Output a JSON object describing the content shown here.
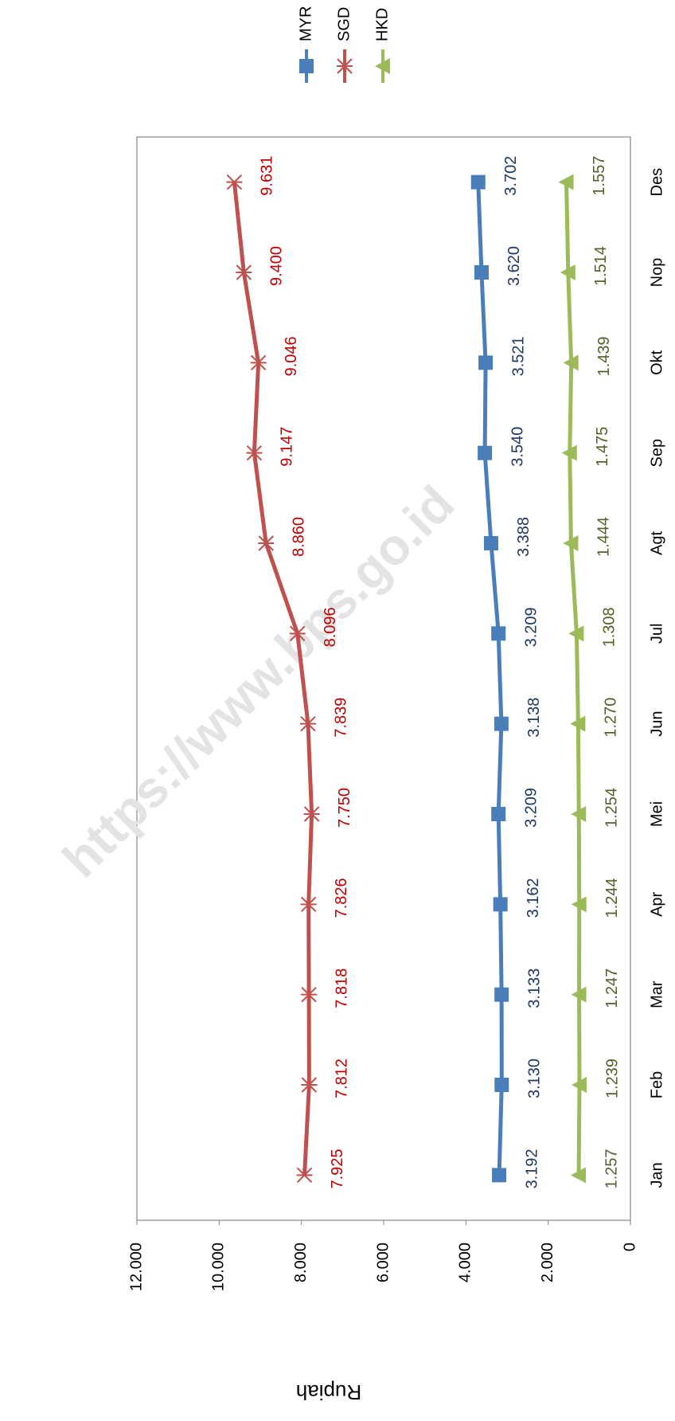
{
  "chart_data": {
    "type": "line",
    "y_label": "Rupiah",
    "watermark": "https://www.bps.go.id",
    "categories": [
      "Jan",
      "Feb",
      "Mar",
      "Apr",
      "Mei",
      "Jun",
      "Jul",
      "Agt",
      "Sep",
      "Okt",
      "Nop",
      "Des"
    ],
    "series": [
      {
        "name": "MYR",
        "color": "#4a7ebb",
        "label_color": "#1f3864",
        "marker": "square",
        "values": [
          3192,
          3130,
          3133,
          3162,
          3209,
          3138,
          3209,
          3388,
          3540,
          3521,
          3620,
          3702
        ],
        "value_labels": [
          "3.192",
          "3.130",
          "3.133",
          "3.162",
          "3.209",
          "3.138",
          "3.209",
          "3.388",
          "3.540",
          "3.521",
          "3.620",
          "3.702"
        ]
      },
      {
        "name": "SGD",
        "color": "#c0504d",
        "label_color": "#c00000",
        "marker": "star",
        "values": [
          7925,
          7812,
          7818,
          7826,
          7750,
          7839,
          8096,
          8860,
          9147,
          9046,
          9400,
          9631
        ],
        "value_labels": [
          "7.925",
          "7.812",
          "7.818",
          "7.826",
          "7.750",
          "7.839",
          "8.096",
          "8.860",
          "9.147",
          "9.046",
          "9.400",
          "9.631"
        ]
      },
      {
        "name": "HKD",
        "color": "#9bbb59",
        "label_color": "#4f6228",
        "marker": "triangle",
        "values": [
          1257,
          1239,
          1247,
          1244,
          1254,
          1270,
          1308,
          1444,
          1475,
          1439,
          1514,
          1557
        ],
        "value_labels": [
          "1.257",
          "1.239",
          "1.247",
          "1.244",
          "1.254",
          "1.270",
          "1.308",
          "1.444",
          "1.475",
          "1.439",
          "1.514",
          "1.557"
        ]
      }
    ],
    "ylim": [
      0,
      12000
    ],
    "yticks": [
      0,
      {
        "value": 2000,
        "label": "2.000"
      },
      {
        "value": 4000,
        "label": "4.000"
      },
      {
        "value": 6000,
        "label": "6.000"
      },
      {
        "value": 8000,
        "label": "8.000"
      },
      {
        "value": 10000,
        "label": "10.000"
      },
      {
        "value": 12000,
        "label": "12.000"
      }
    ],
    "grid": false,
    "legend": "top-right"
  }
}
